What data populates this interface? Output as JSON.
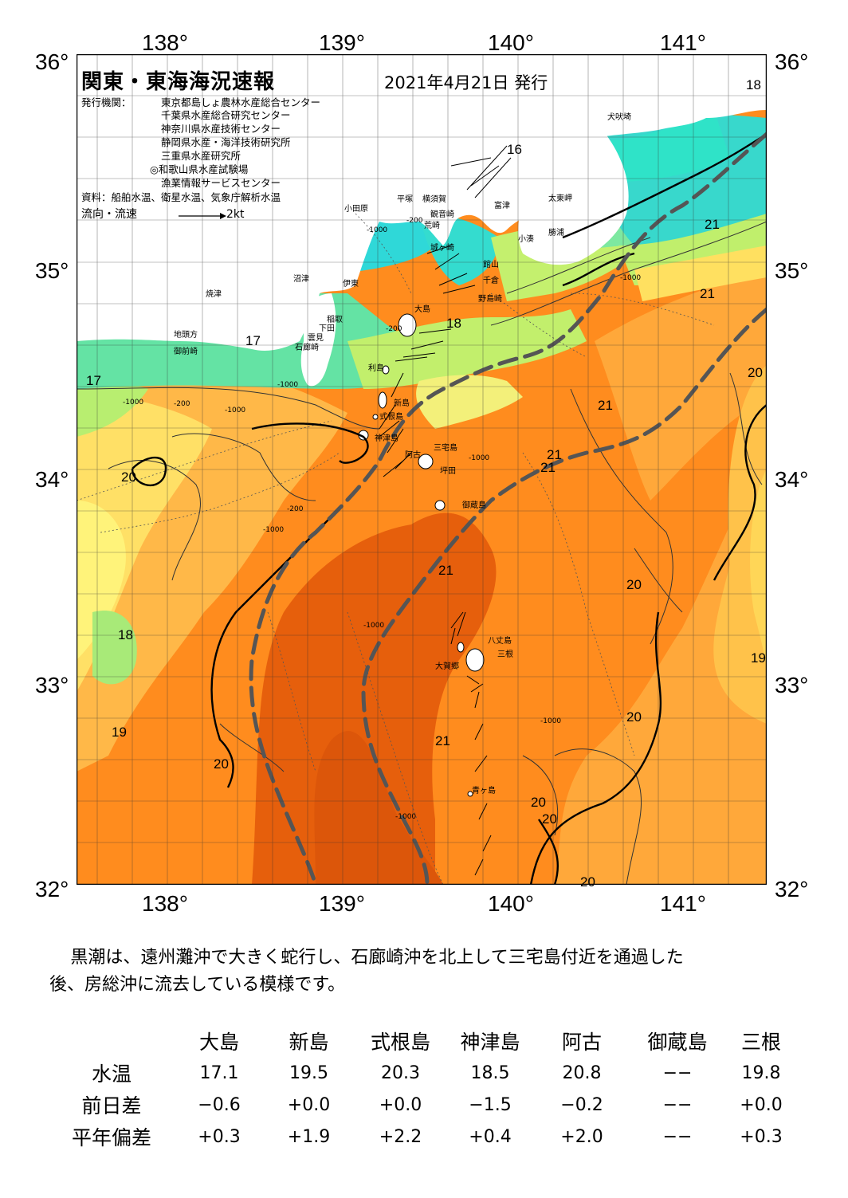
{
  "header": {
    "title": "関東・東海海況速報",
    "issue_date": "2021年4月21日 発行",
    "org_label": "発行機関：",
    "orgs": [
      "東京都島しょ農林水産総合センター",
      "千葉県水産総合研究センター",
      "神奈川県水産技術センター",
      "静岡県水産・海洋技術研究所",
      "三重県水産研究所",
      "◎和歌山県水産試験場",
      "漁業情報サービスセンター"
    ],
    "source": "資料：船舶水温、衛星水温、気象庁解析水温",
    "current_legend": "流向・流速",
    "current_scale": "2kt"
  },
  "map": {
    "lon_labels": [
      "138°",
      "139°",
      "140°",
      "141°"
    ],
    "lat_labels": [
      "36°",
      "35°",
      "34°",
      "33°",
      "32°"
    ],
    "colors": {
      "land": "#ffffff",
      "t15": "#2ee3c4",
      "t16": "#2ecde0",
      "t17": "#62e4a6",
      "t18": "#b3ee72",
      "t19": "#fffb82",
      "t19b": "#ffd84a",
      "t20": "#ffae3e",
      "t21": "#ff8c1e",
      "t22": "#f06a12",
      "t23": "#e05a0a",
      "kuroshio": "#555555"
    },
    "isotherm_labels": [
      "18",
      "16",
      "21",
      "21",
      "17",
      "18",
      "20",
      "17",
      "21",
      "21",
      "21",
      "20",
      "21",
      "20",
      "18",
      "19",
      "19",
      "20",
      "20",
      "21",
      "20",
      "20",
      "20"
    ],
    "depth_labels": [
      "-1000",
      "-200",
      "-1000",
      "-200",
      "-1000",
      "-1000",
      "-200",
      "-1000",
      "-1000",
      "-1000",
      "-200",
      "-1000",
      "-1000",
      "-1000"
    ],
    "place_names": [
      "犬吠埼",
      "富津",
      "太東岬",
      "小田原",
      "平塚",
      "横須賀",
      "観音崎",
      "荒崎",
      "城ヶ崎",
      "勝浦",
      "小湊",
      "館山",
      "千倉",
      "野島崎",
      "沼津",
      "伊東",
      "焼津",
      "稲取",
      "下田",
      "雲見",
      "石廊崎",
      "地頭方",
      "御前崎",
      "大島",
      "利島",
      "新島",
      "式根島",
      "神津島",
      "三宅島",
      "阿古",
      "坪田",
      "御蔵島",
      "八丈島",
      "三根",
      "大賀郷",
      "青ヶ島"
    ]
  },
  "summary": {
    "text_line1": "黒潮は、遠州灘沖で大きく蛇行し、石廊崎沖を北上して三宅島付近を通過した",
    "text_line2": "後、房総沖に流去している模様です。"
  },
  "obs_table": {
    "columns": [
      "大島",
      "新島",
      "式根島",
      "神津島",
      "阿古",
      "御蔵島",
      "三根"
    ],
    "rows": [
      {
        "label": "水温",
        "values": [
          "17.1",
          "19.5",
          "20.3",
          "18.5",
          "20.8",
          "−−",
          "19.8"
        ]
      },
      {
        "label": "前日差",
        "values": [
          "−0.6",
          "+0.0",
          "+0.0",
          "−1.5",
          "−0.2",
          "−−",
          "+0.0"
        ]
      },
      {
        "label": "平年偏差",
        "values": [
          "+0.3",
          "+1.9",
          "+2.2",
          "+0.4",
          "+2.0",
          "−−",
          "+0.3"
        ]
      }
    ]
  }
}
